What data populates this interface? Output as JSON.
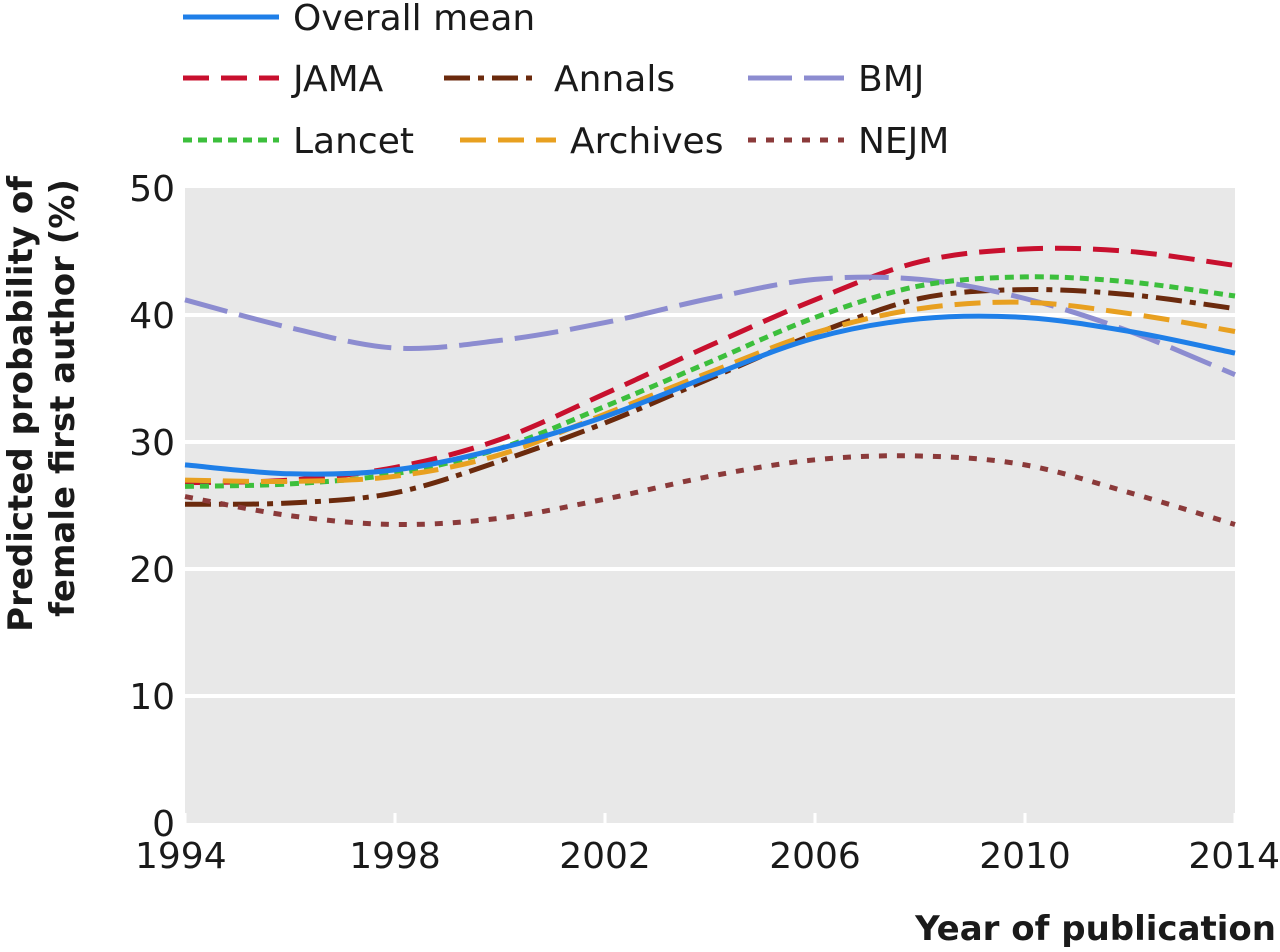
{
  "chart_data": {
    "type": "line",
    "title": "",
    "xlabel": "Year of publication",
    "ylabel_lines": [
      "Predicted probability of",
      "female first author (%)"
    ],
    "xlim": [
      1994,
      2014
    ],
    "ylim": [
      0,
      50
    ],
    "x_ticks": [
      1994,
      1998,
      2002,
      2006,
      2010,
      2014
    ],
    "y_ticks": [
      0,
      10,
      20,
      30,
      40,
      50
    ],
    "grid": true,
    "legend_position": "top",
    "x": [
      1994,
      1996,
      1998,
      2000,
      2002,
      2004,
      2006,
      2008,
      2010,
      2012,
      2014
    ],
    "series": [
      {
        "name": "Overall mean",
        "color": "#1f7fe8",
        "dash": "solid",
        "values": [
          28.2,
          27.5,
          27.8,
          29.5,
          32.0,
          35.2,
          38.2,
          39.7,
          39.8,
          38.7,
          37.0
        ]
      },
      {
        "name": "JAMA",
        "color": "#c8102e",
        "dash": "dashed",
        "values": [
          26.8,
          27.0,
          28.0,
          30.2,
          33.8,
          37.6,
          41.2,
          44.2,
          45.2,
          45.0,
          43.9
        ]
      },
      {
        "name": "Annals",
        "color": "#6b2a0d",
        "dash": "dashdot",
        "values": [
          25.1,
          25.2,
          26.0,
          28.5,
          31.5,
          35.0,
          38.5,
          41.3,
          42.0,
          41.6,
          40.5
        ]
      },
      {
        "name": "BMJ",
        "color": "#8c8cd0",
        "dash": "longdash",
        "values": [
          41.2,
          39.0,
          37.4,
          38.0,
          39.4,
          41.3,
          42.8,
          42.8,
          41.3,
          38.7,
          35.3
        ]
      },
      {
        "name": "Lancet",
        "color": "#3cbf3c",
        "dash": "dotted",
        "values": [
          26.5,
          26.7,
          27.5,
          29.5,
          32.8,
          36.3,
          39.8,
          42.3,
          43.0,
          42.6,
          41.5
        ]
      },
      {
        "name": "Archives",
        "color": "#e8a020",
        "dash": "dashed",
        "values": [
          27.0,
          26.9,
          27.3,
          29.0,
          32.2,
          35.5,
          38.6,
          40.5,
          41.0,
          40.1,
          38.7
        ]
      },
      {
        "name": "NEJM",
        "color": "#8b3a3a",
        "dash": "dotted-wide",
        "values": [
          25.7,
          24.2,
          23.5,
          24.0,
          25.5,
          27.3,
          28.6,
          28.9,
          28.2,
          26.0,
          23.5
        ]
      }
    ]
  }
}
